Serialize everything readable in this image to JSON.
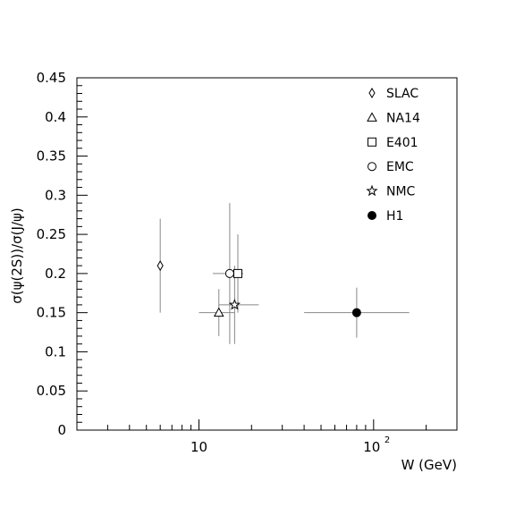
{
  "chart_data": {
    "type": "scatter",
    "title": "",
    "xlabel": "W (GeV)",
    "ylabel": "σ(ψ(2S))/σ(J/ψ)",
    "x_scale": "log",
    "xlim": [
      2,
      300
    ],
    "ylim": [
      0,
      0.45
    ],
    "grid": false,
    "legend_position": "top-right",
    "x_tick_labels": [
      {
        "value": 10,
        "label": "10"
      },
      {
        "value": 100,
        "label": "10²"
      }
    ],
    "y_tick_labels": [
      "0",
      "0.05",
      "0.1",
      "0.15",
      "0.2",
      "0.25",
      "0.3",
      "0.35",
      "0.4",
      "0.45"
    ],
    "y_ticks": [
      0,
      0.05,
      0.1,
      0.15,
      0.2,
      0.25,
      0.3,
      0.35,
      0.4,
      0.45
    ],
    "series": [
      {
        "name": "SLAC",
        "marker": "diamond",
        "filled": false,
        "points": [
          {
            "x": 6,
            "y": 0.21,
            "y_err": [
              0.06,
              0.06
            ],
            "x_err": [
              0,
              0
            ]
          }
        ]
      },
      {
        "name": "NA14",
        "marker": "triangle",
        "filled": false,
        "points": [
          {
            "x": 13,
            "y": 0.15,
            "y_err": [
              0.03,
              0.03
            ],
            "x_err": [
              3,
              3
            ]
          }
        ]
      },
      {
        "name": "E401",
        "marker": "square",
        "filled": false,
        "points": [
          {
            "x": 16.7,
            "y": 0.2,
            "y_err": [
              0.05,
              0.05
            ],
            "x_err": [
              1.2,
              1.2
            ]
          }
        ]
      },
      {
        "name": "EMC",
        "marker": "circle",
        "filled": false,
        "points": [
          {
            "x": 15,
            "y": 0.2,
            "y_err": [
              0.09,
              0.09
            ],
            "x_err": [
              3,
              2
            ]
          }
        ]
      },
      {
        "name": "NMC",
        "marker": "star",
        "filled": false,
        "points": [
          {
            "x": 16,
            "y": 0.16,
            "y_err": [
              0.05,
              0.05
            ],
            "x_err": [
              3,
              6
            ]
          }
        ]
      },
      {
        "name": "H1",
        "marker": "circle",
        "filled": true,
        "points": [
          {
            "x": 80,
            "y": 0.15,
            "y_err": [
              0.032,
              0.032
            ],
            "x_err": [
              40,
              80
            ]
          }
        ]
      }
    ]
  }
}
